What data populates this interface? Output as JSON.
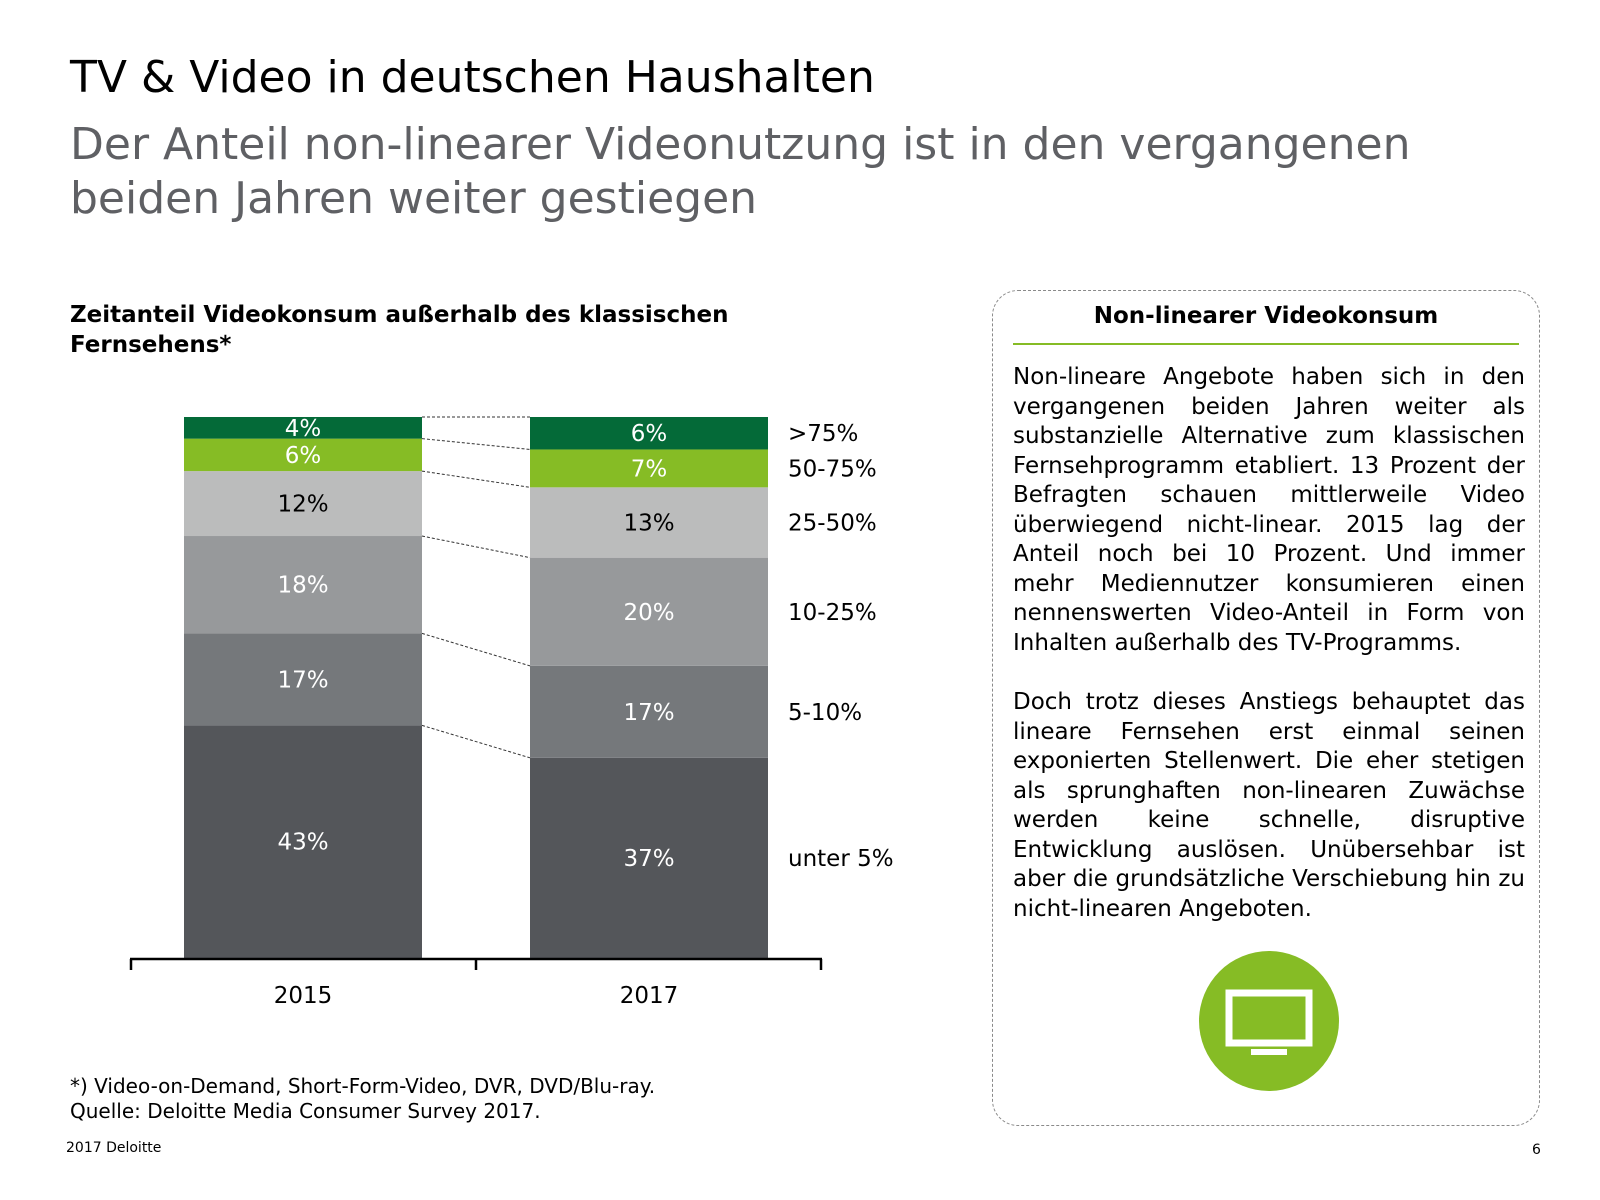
{
  "header": {
    "title": "TV & Video in deutschen Haushalten",
    "subtitle": "Der Anteil non-linearer Videonutzung ist in den vergangenen beiden Jahren weiter gestiegen"
  },
  "chart_data": {
    "type": "bar",
    "stacked": true,
    "title": "Zeitanteil Videokonsum außerhalb des klassischen Fernsehens*",
    "categories": [
      "2015",
      "2017"
    ],
    "series": [
      {
        "name": "unter 5%",
        "values": [
          43,
          37
        ],
        "color": "#54565a"
      },
      {
        "name": "5-10%",
        "values": [
          17,
          17
        ],
        "color": "#75787b"
      },
      {
        "name": "10-25%",
        "values": [
          18,
          20
        ],
        "color": "#97999b"
      },
      {
        "name": "25-50%",
        "values": [
          12,
          13
        ],
        "color": "#bbbcbc"
      },
      {
        "name": "50-75%",
        "values": [
          6,
          7
        ],
        "color": "#86bc25"
      },
      {
        "name": ">75%",
        "values": [
          4,
          6
        ],
        "color": "#046a38"
      }
    ],
    "value_suffix": "%",
    "label_colors": {
      "light": "#ffffff",
      "dark": "#000000"
    },
    "legend": "right, aligned with 2017 segments"
  },
  "footnote": {
    "line1": "*) Video-on-Demand, Short-Form-Video, DVR, DVD/Blu-ray.",
    "line2": "Quelle: Deloitte Media Consumer Survey 2017."
  },
  "footer": {
    "company": "2017 Deloitte",
    "page": "6"
  },
  "info_box": {
    "heading": "Non-linearer Videokonsum",
    "paragraph1": "Non-lineare Angebote haben sich in den vergangenen beiden Jahren weiter als substanzielle Alternative zum klassischen Fernsehprogramm etabliert. 13 Prozent der Befragten schauen mittlerweile Video überwiegend nicht-linear. 2015 lag der Anteil noch bei 10 Prozent. Und immer mehr Mediennutzer konsumieren einen nennenswerten Video-Anteil in Form von Inhalten außerhalb des TV-Programms.",
    "paragraph2": "Doch trotz dieses Anstiegs behauptet das lineare Fernsehen erst einmal seinen exponierten Stellenwert. Die eher stetigen als sprunghaften non-linearen Zuwächse werden keine schnelle, disruptive Entwicklung auslösen. Unübersehbar ist aber die grundsätzliche Verschiebung hin zu nicht-linearen Angeboten.",
    "icon": "tv-icon",
    "accent_color": "#86bc25"
  }
}
